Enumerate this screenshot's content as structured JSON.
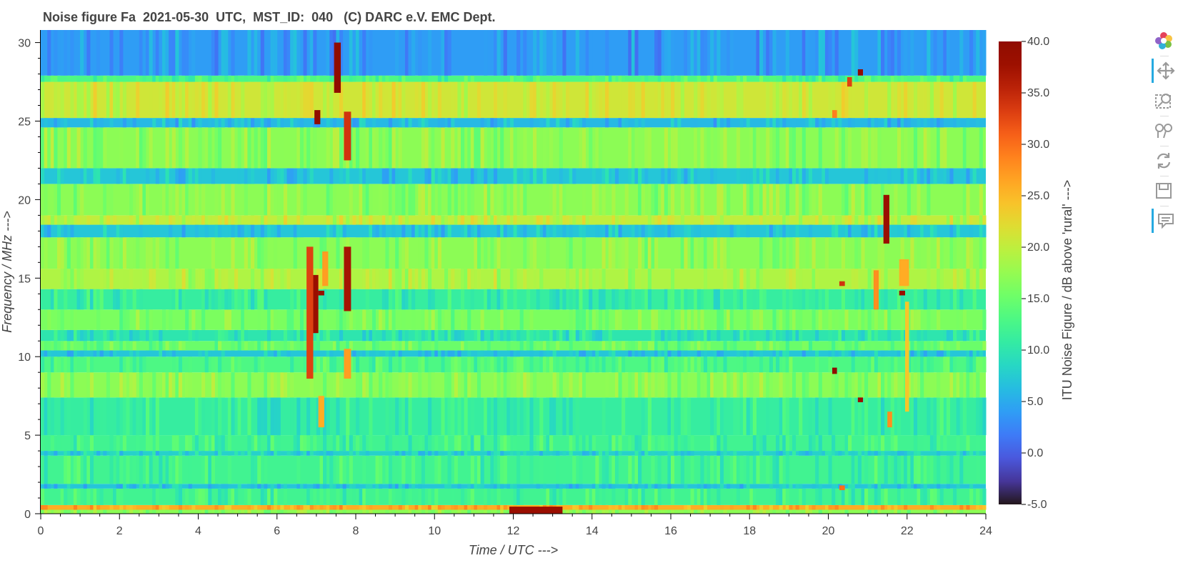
{
  "title": "Noise figure Fa  2021-05-30  UTC,  MST_ID:  040   (C) DARC e.V. EMC Dept.",
  "chart_data": {
    "type": "heatmap",
    "title": "Noise figure Fa  2021-05-30  UTC,  MST_ID:  040   (C) DARC e.V. EMC Dept.",
    "xlabel": "Time / UTC --->",
    "ylabel": "Frequency / MHz --->",
    "colorbar_label": "ITU Noise Figure / dB above 'rural' --->",
    "xlim": [
      0,
      24
    ],
    "ylim": [
      0,
      30.8
    ],
    "x_ticks": [
      0,
      2,
      4,
      6,
      8,
      10,
      12,
      14,
      16,
      18,
      20,
      22,
      24
    ],
    "y_ticks": [
      0,
      5,
      10,
      15,
      20,
      25,
      30
    ],
    "colorbar_range": [
      -5,
      40
    ],
    "colorbar_ticks": [
      "40.0",
      "35.0",
      "30.0",
      "25.0",
      "20.0",
      "15.0",
      "10.0",
      "5.0",
      "0.0",
      "-5.0"
    ],
    "colormap": "turbo",
    "background_bands": [
      {
        "f0": 0,
        "f1": 0.25,
        "value": 17
      },
      {
        "f0": 0.25,
        "f1": 0.55,
        "value": 26
      },
      {
        "f0": 0.55,
        "f1": 1.6,
        "value": 12
      },
      {
        "f0": 1.6,
        "f1": 1.9,
        "value": 7
      },
      {
        "f0": 1.9,
        "f1": 3.7,
        "value": 12
      },
      {
        "f0": 3.7,
        "f1": 4.0,
        "value": 8
      },
      {
        "f0": 4.0,
        "f1": 5.0,
        "value": 12
      },
      {
        "f0": 5.0,
        "f1": 7.4,
        "value": 11
      },
      {
        "f0": 7.4,
        "f1": 9.0,
        "value": 17
      },
      {
        "f0": 9.0,
        "f1": 10.0,
        "value": 13
      },
      {
        "f0": 10.0,
        "f1": 10.4,
        "value": 7
      },
      {
        "f0": 10.4,
        "f1": 11.0,
        "value": 15
      },
      {
        "f0": 11.0,
        "f1": 11.7,
        "value": 10
      },
      {
        "f0": 11.7,
        "f1": 13.0,
        "value": 16
      },
      {
        "f0": 13.0,
        "f1": 14.3,
        "value": 11
      },
      {
        "f0": 14.3,
        "f1": 15.6,
        "value": 19
      },
      {
        "f0": 15.6,
        "f1": 17.6,
        "value": 17
      },
      {
        "f0": 17.6,
        "f1": 18.4,
        "value": 7
      },
      {
        "f0": 18.4,
        "f1": 19.0,
        "value": 20
      },
      {
        "f0": 19.0,
        "f1": 21.0,
        "value": 17
      },
      {
        "f0": 21.0,
        "f1": 22.0,
        "value": 7
      },
      {
        "f0": 22.0,
        "f1": 24.6,
        "value": 17
      },
      {
        "f0": 24.6,
        "f1": 25.2,
        "value": 6
      },
      {
        "f0": 25.2,
        "f1": 27.5,
        "value": 21
      },
      {
        "f0": 27.5,
        "f1": 27.9,
        "value": 13
      },
      {
        "f0": 27.9,
        "f1": 30.8,
        "value": 4
      }
    ],
    "hotspots": [
      {
        "t0": 6.75,
        "t1": 6.92,
        "f0": 8.6,
        "f1": 17.0,
        "value": 33
      },
      {
        "t0": 6.92,
        "t1": 7.05,
        "f0": 11.5,
        "f1": 15.2,
        "value": 38
      },
      {
        "t0": 6.95,
        "t1": 7.1,
        "f0": 24.8,
        "f1": 25.7,
        "value": 40
      },
      {
        "t0": 7.05,
        "t1": 7.2,
        "f0": 5.5,
        "f1": 7.5,
        "value": 26
      },
      {
        "t0": 7.05,
        "t1": 7.2,
        "f0": 13.9,
        "f1": 14.2,
        "value": 38
      },
      {
        "t0": 7.15,
        "t1": 7.3,
        "f0": 14.5,
        "f1": 16.7,
        "value": 27
      },
      {
        "t0": 7.45,
        "t1": 7.62,
        "f0": 26.8,
        "f1": 30.0,
        "value": 40
      },
      {
        "t0": 7.7,
        "t1": 7.88,
        "f0": 8.6,
        "f1": 10.5,
        "value": 27
      },
      {
        "t0": 7.7,
        "t1": 7.88,
        "f0": 12.9,
        "f1": 17.0,
        "value": 37
      },
      {
        "t0": 7.7,
        "t1": 7.88,
        "f0": 22.5,
        "f1": 25.6,
        "value": 34
      },
      {
        "t0": 11.9,
        "t1": 13.25,
        "f0": 0.0,
        "f1": 0.45,
        "value": 38
      },
      {
        "t0": 20.1,
        "t1": 20.22,
        "f0": 8.9,
        "f1": 9.3,
        "value": 40
      },
      {
        "t0": 20.1,
        "t1": 20.22,
        "f0": 25.2,
        "f1": 25.7,
        "value": 29
      },
      {
        "t0": 20.28,
        "t1": 20.42,
        "f0": 14.5,
        "f1": 14.8,
        "value": 34
      },
      {
        "t0": 20.28,
        "t1": 20.42,
        "f0": 1.5,
        "f1": 1.8,
        "value": 30
      },
      {
        "t0": 20.48,
        "t1": 20.6,
        "f0": 27.2,
        "f1": 27.8,
        "value": 33
      },
      {
        "t0": 20.75,
        "t1": 20.88,
        "f0": 27.9,
        "f1": 28.3,
        "value": 40
      },
      {
        "t0": 20.75,
        "t1": 20.88,
        "f0": 7.1,
        "f1": 7.4,
        "value": 38
      },
      {
        "t0": 21.15,
        "t1": 21.28,
        "f0": 13.0,
        "f1": 15.5,
        "value": 28
      },
      {
        "t0": 21.4,
        "t1": 21.55,
        "f0": 17.2,
        "f1": 20.3,
        "value": 38
      },
      {
        "t0": 21.5,
        "t1": 21.62,
        "f0": 5.5,
        "f1": 6.5,
        "value": 28
      },
      {
        "t0": 21.8,
        "t1": 21.95,
        "f0": 13.9,
        "f1": 14.2,
        "value": 38
      },
      {
        "t0": 21.8,
        "t1": 22.05,
        "f0": 14.5,
        "f1": 16.2,
        "value": 26
      },
      {
        "t0": 21.95,
        "t1": 22.05,
        "f0": 8.2,
        "f1": 9.0,
        "value": 40
      },
      {
        "t0": 21.95,
        "t1": 22.05,
        "f0": 6.5,
        "f1": 13.5,
        "value": 24
      }
    ]
  },
  "toolbar": {
    "tools": [
      {
        "name": "bokeh-logo-icon",
        "active": false
      },
      {
        "name": "pan-icon",
        "active": true
      },
      {
        "name": "box-zoom-icon",
        "active": false
      },
      {
        "name": "wheel-zoom-icon",
        "active": false
      },
      {
        "name": "reset-icon",
        "active": false
      },
      {
        "name": "save-icon",
        "active": false
      },
      {
        "name": "hover-icon",
        "active": true
      }
    ]
  }
}
